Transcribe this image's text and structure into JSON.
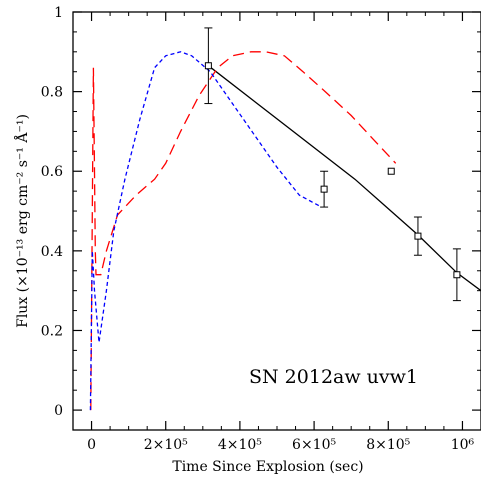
{
  "chart_data": {
    "type": "line",
    "title": "",
    "xlabel": "Time Since Explosion (sec)",
    "ylabel": "Flux (×10⁻¹³ erg cm⁻² s⁻¹ Å⁻¹)",
    "annotation": "SN 2012aw uvw1",
    "xlim": [
      -50000,
      1050000
    ],
    "ylim": [
      -0.05,
      1.0
    ],
    "x_ticks": [
      {
        "value": 0,
        "label": "0"
      },
      {
        "value": 200000,
        "label": "2×10⁵"
      },
      {
        "value": 400000,
        "label": "4×10⁵"
      },
      {
        "value": 600000,
        "label": "6×10⁵"
      },
      {
        "value": 800000,
        "label": "8×10⁵"
      },
      {
        "value": 1000000,
        "label": "10⁶"
      }
    ],
    "y_ticks": [
      {
        "value": 0,
        "label": "0"
      },
      {
        "value": 0.2,
        "label": "0.2"
      },
      {
        "value": 0.4,
        "label": "0.4"
      },
      {
        "value": 0.6,
        "label": "0.6"
      },
      {
        "value": 0.8,
        "label": "0.8"
      },
      {
        "value": 1,
        "label": "1"
      }
    ],
    "grid": false,
    "series": [
      {
        "style": "solid",
        "color": "#000000",
        "x": [
          315000,
          710000,
          880000,
          985000,
          1050000
        ],
        "y": [
          0.865,
          0.58,
          0.44,
          0.345,
          0.3
        ]
      },
      {
        "style": "long-dash",
        "color": "#ff0000",
        "x": [
          -2000,
          5000,
          8000,
          10000,
          12000,
          25000,
          40000,
          70000,
          120000,
          170000,
          200000,
          240000,
          290000,
          340000,
          380000,
          430000,
          470000,
          520000,
          570000,
          630000,
          700000,
          760000,
          820000
        ],
        "y": [
          0.0,
          0.86,
          0.6,
          0.4,
          0.34,
          0.34,
          0.4,
          0.49,
          0.54,
          0.58,
          0.62,
          0.7,
          0.79,
          0.86,
          0.89,
          0.9,
          0.9,
          0.89,
          0.85,
          0.8,
          0.74,
          0.68,
          0.62
        ]
      },
      {
        "style": "short-dash",
        "color": "#0000ff",
        "x": [
          -3000,
          2000,
          8000,
          20000,
          40000,
          60000,
          90000,
          130000,
          170000,
          200000,
          240000,
          270000,
          320000,
          380000,
          440000,
          500000,
          560000,
          620000
        ],
        "y": [
          0.0,
          0.4,
          0.3,
          0.17,
          0.3,
          0.45,
          0.58,
          0.73,
          0.86,
          0.89,
          0.9,
          0.89,
          0.85,
          0.77,
          0.69,
          0.61,
          0.54,
          0.51
        ]
      }
    ],
    "points": [
      {
        "x": 315000,
        "y": 0.865,
        "err": 0.095
      },
      {
        "x": 627000,
        "y": 0.555,
        "err": 0.045
      },
      {
        "x": 808000,
        "y": 0.6,
        "err": 0.0
      },
      {
        "x": 880000,
        "y": 0.437,
        "err": 0.048
      },
      {
        "x": 985000,
        "y": 0.34,
        "err": 0.065
      }
    ]
  }
}
